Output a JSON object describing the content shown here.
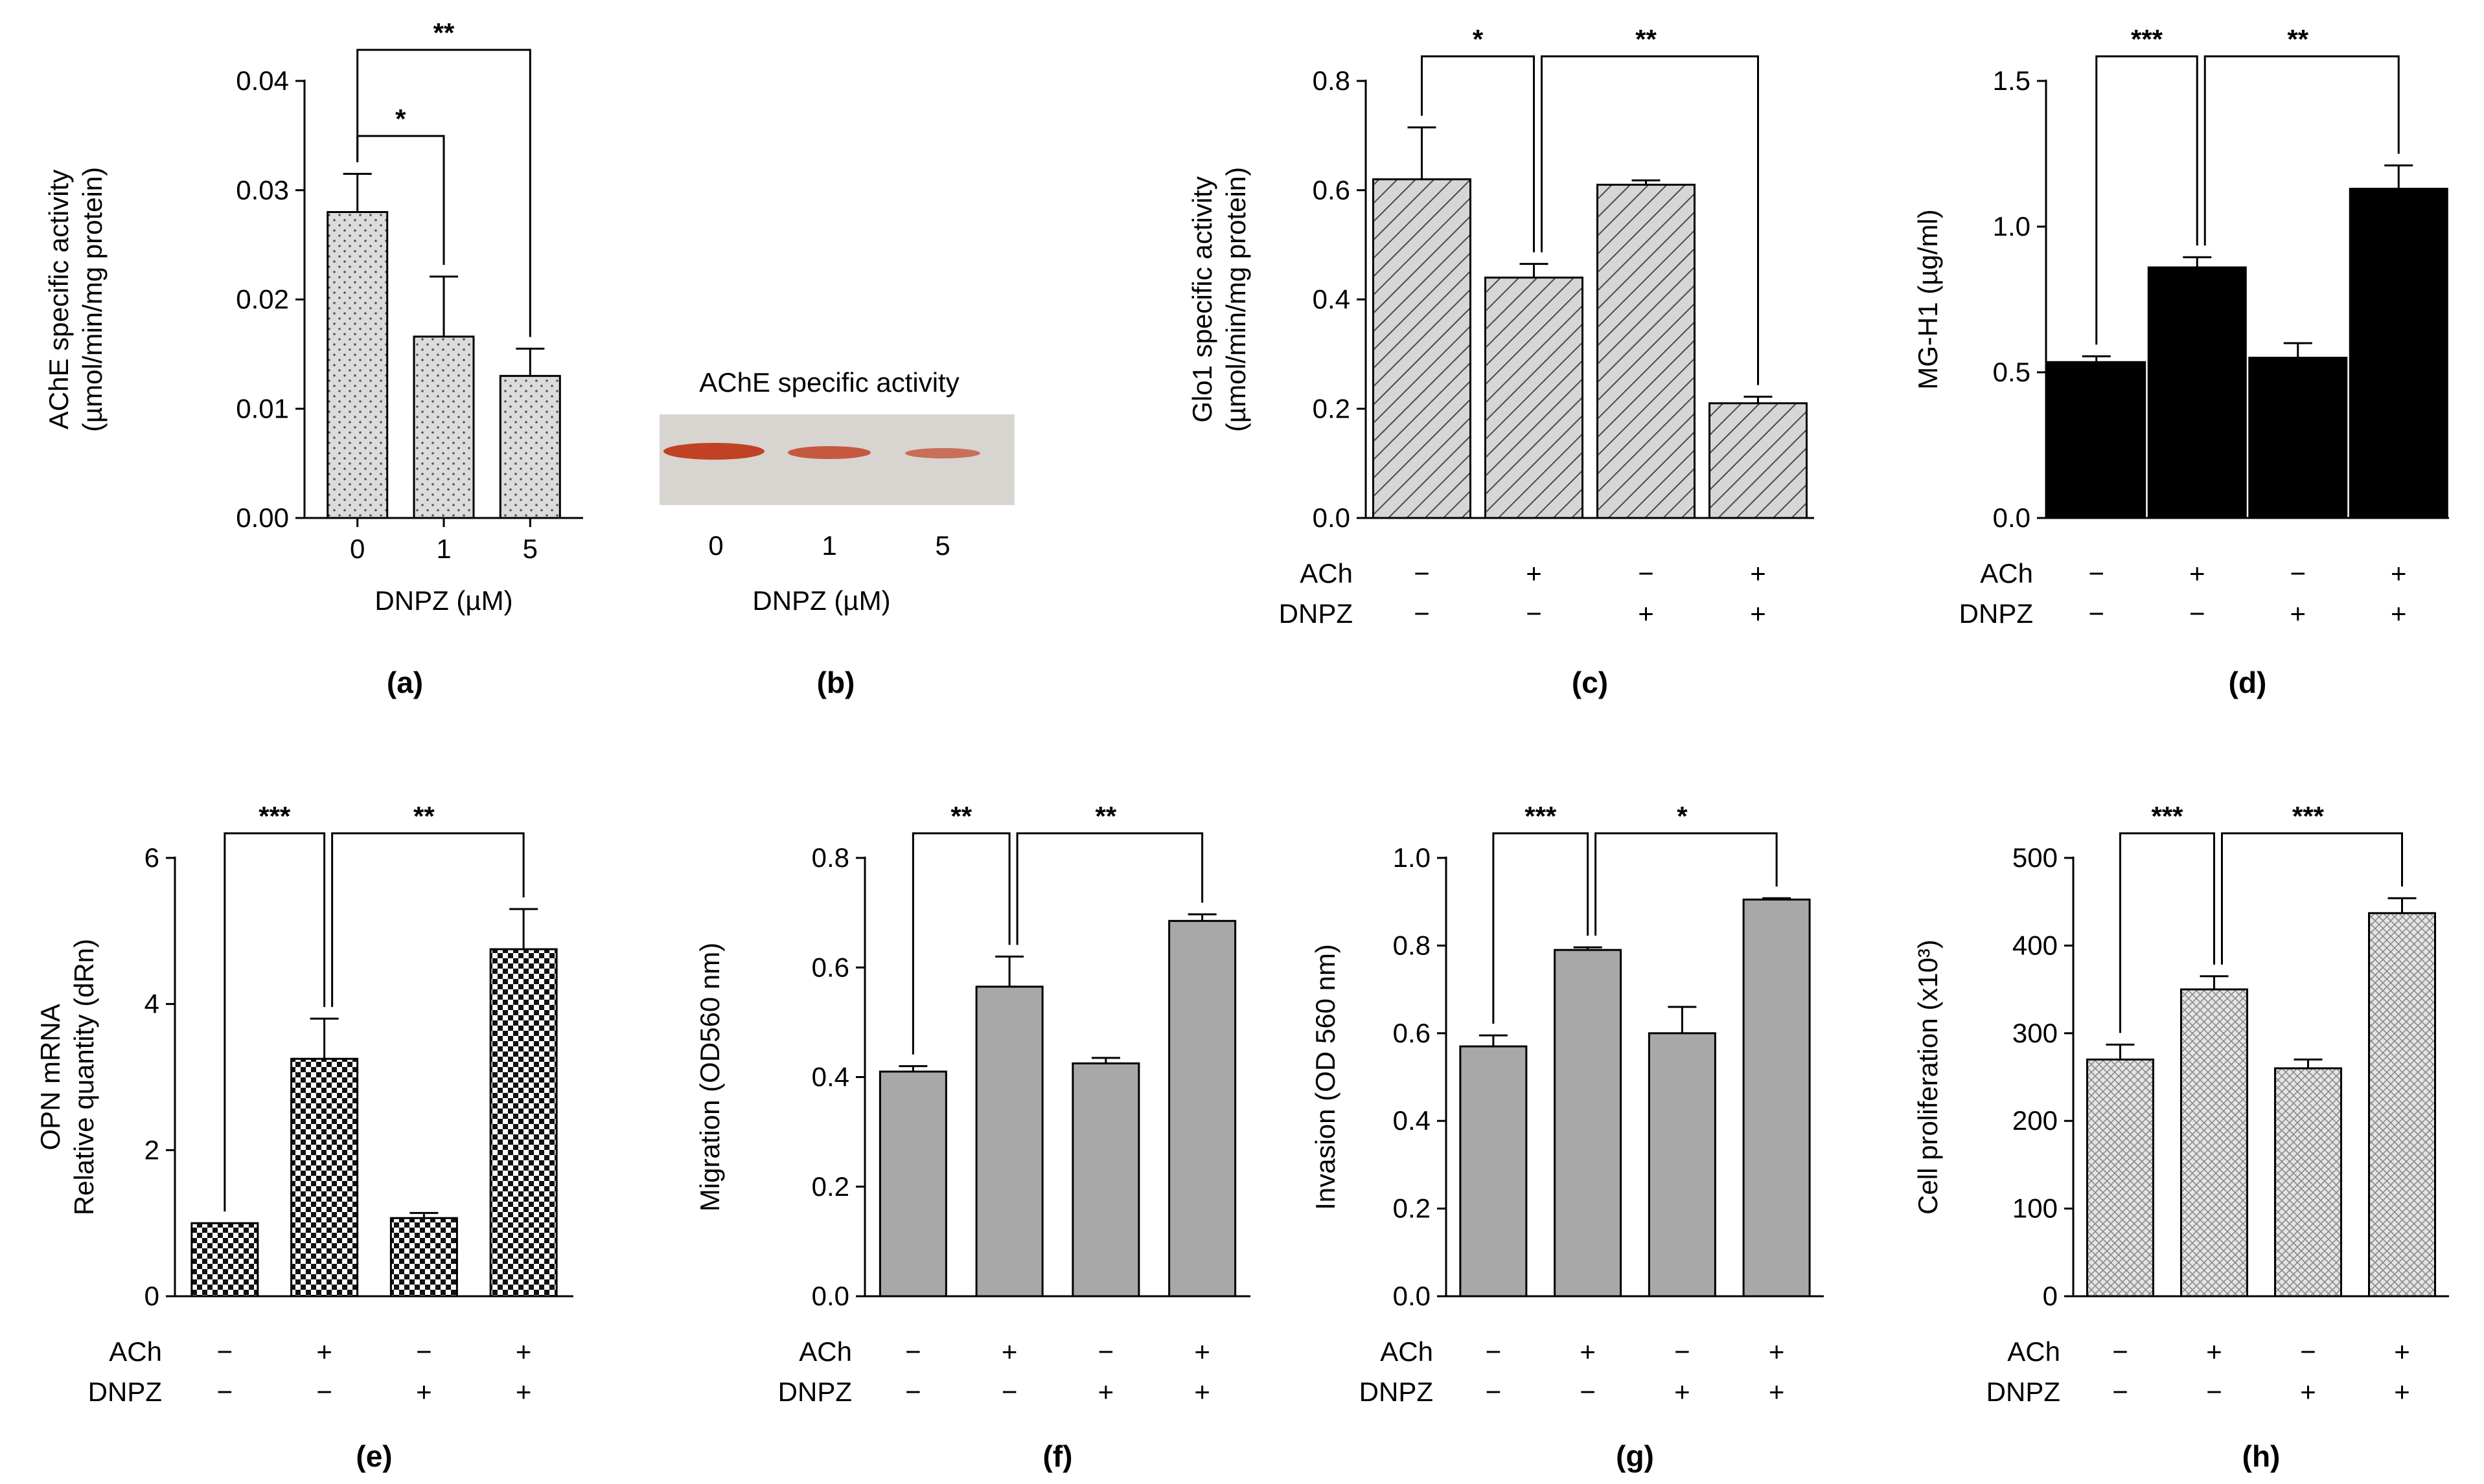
{
  "colors": {
    "panel_a_fill": "#dcdcdc",
    "panel_c_fill": "#d6d6d6",
    "panel_d_fill": "#000000",
    "panel_e_fill": "#1e1e1e",
    "panel_fg_fill": "#a8a8a8",
    "panel_h_fill": "#d4d4d4",
    "blot_bg": "#d8d4d0",
    "blot_band": "#c0391a"
  },
  "blot": {
    "title": "AChE specific activity",
    "lanes": [
      "0",
      "1",
      "5"
    ],
    "xlabel": "DNPZ (µM)",
    "panel_label": "(b)"
  },
  "chart_data": [
    {
      "id": "a",
      "type": "bar",
      "panel_label": "(a)",
      "pattern": "dots",
      "ylabel": [
        "AChE specific activity",
        "(µmol/min/mg protein)"
      ],
      "xlabel": "DNPZ (µM)",
      "categories": [
        "0",
        "1",
        "5"
      ],
      "values": [
        0.028,
        0.0166,
        0.013
      ],
      "errors": [
        0.0035,
        0.0055,
        0.0025
      ],
      "ylim": [
        0,
        0.04
      ],
      "yticks": [
        "0.00",
        "0.01",
        "0.02",
        "0.03",
        "0.04"
      ],
      "brackets": [
        {
          "from": 0,
          "to": 1,
          "label": "*"
        },
        {
          "from": 0,
          "to": 2,
          "label": "**"
        }
      ]
    },
    {
      "id": "c",
      "type": "bar",
      "panel_label": "(c)",
      "pattern": "diag",
      "ylabel": [
        "Glo1 specific activity",
        "(µmol/min/mg protein)"
      ],
      "values": [
        0.62,
        0.44,
        0.61,
        0.21
      ],
      "errors": [
        0.095,
        0.025,
        0.008,
        0.012
      ],
      "ylim": [
        0,
        0.8
      ],
      "yticks": [
        "0.0",
        "0.2",
        "0.4",
        "0.6",
        "0.8"
      ],
      "treatments": [
        {
          "name": "ACh",
          "signs": [
            "−",
            "+",
            "−",
            "+"
          ]
        },
        {
          "name": "DNPZ",
          "signs": [
            "−",
            "−",
            "+",
            "+"
          ]
        }
      ],
      "brackets": [
        {
          "from": 0,
          "to": 1,
          "label": "*"
        },
        {
          "from": 1,
          "to": 3,
          "label": "**"
        }
      ]
    },
    {
      "id": "d",
      "type": "bar",
      "panel_label": "(d)",
      "pattern": "solid",
      "ylabel": [
        "MG-H1 (µg/ml)"
      ],
      "values": [
        0.535,
        0.86,
        0.55,
        1.13
      ],
      "errors": [
        0.02,
        0.035,
        0.05,
        0.08
      ],
      "ylim": [
        0,
        1.5
      ],
      "yticks": [
        "0.0",
        "0.5",
        "1.0",
        "1.5"
      ],
      "treatments": [
        {
          "name": "ACh",
          "signs": [
            "−",
            "+",
            "−",
            "+"
          ]
        },
        {
          "name": "DNPZ",
          "signs": [
            "−",
            "−",
            "+",
            "+"
          ]
        }
      ],
      "brackets": [
        {
          "from": 0,
          "to": 1,
          "label": "***"
        },
        {
          "from": 1,
          "to": 3,
          "label": "**"
        }
      ]
    },
    {
      "id": "e",
      "type": "bar",
      "panel_label": "(e)",
      "pattern": "check",
      "ylabel": [
        "OPN mRNA",
        "Relative quantity (dRn)"
      ],
      "values": [
        1.0,
        3.25,
        1.07,
        4.75
      ],
      "errors": [
        0.0,
        0.55,
        0.07,
        0.55
      ],
      "ylim": [
        0,
        6
      ],
      "yticks": [
        "0",
        "2",
        "4",
        "6"
      ],
      "treatments": [
        {
          "name": "ACh",
          "signs": [
            "−",
            "+",
            "−",
            "+"
          ]
        },
        {
          "name": "DNPZ",
          "signs": [
            "−",
            "−",
            "+",
            "+"
          ]
        }
      ],
      "brackets": [
        {
          "from": 0,
          "to": 1,
          "label": "***"
        },
        {
          "from": 1,
          "to": 3,
          "label": "**"
        }
      ]
    },
    {
      "id": "f",
      "type": "bar",
      "panel_label": "(f)",
      "pattern": "gray",
      "ylabel": [
        "Migration (OD560 nm)"
      ],
      "values": [
        0.41,
        0.565,
        0.425,
        0.685
      ],
      "errors": [
        0.01,
        0.055,
        0.01,
        0.012
      ],
      "ylim": [
        0,
        0.8
      ],
      "yticks": [
        "0.0",
        "0.2",
        "0.4",
        "0.6",
        "0.8"
      ],
      "treatments": [
        {
          "name": "ACh",
          "signs": [
            "−",
            "+",
            "−",
            "+"
          ]
        },
        {
          "name": "DNPZ",
          "signs": [
            "−",
            "−",
            "+",
            "+"
          ]
        }
      ],
      "brackets": [
        {
          "from": 0,
          "to": 1,
          "label": "**"
        },
        {
          "from": 1,
          "to": 3,
          "label": "**"
        }
      ]
    },
    {
      "id": "g",
      "type": "bar",
      "panel_label": "(g)",
      "pattern": "gray",
      "ylabel": [
        "Invasion (OD 560 nm)"
      ],
      "values": [
        0.57,
        0.79,
        0.6,
        0.905
      ],
      "errors": [
        0.025,
        0.006,
        0.06,
        0.003
      ],
      "ylim": [
        0,
        1.0
      ],
      "yticks": [
        "0.0",
        "0.2",
        "0.4",
        "0.6",
        "0.8",
        "1.0"
      ],
      "treatments": [
        {
          "name": "ACh",
          "signs": [
            "−",
            "+",
            "−",
            "+"
          ]
        },
        {
          "name": "DNPZ",
          "signs": [
            "−",
            "−",
            "+",
            "+"
          ]
        }
      ],
      "brackets": [
        {
          "from": 0,
          "to": 1,
          "label": "***"
        },
        {
          "from": 1,
          "to": 3,
          "label": "*"
        }
      ]
    },
    {
      "id": "h",
      "type": "bar",
      "panel_label": "(h)",
      "pattern": "crosshatch",
      "ylabel": [
        "Cell proliferation (x10³)"
      ],
      "values": [
        270,
        350,
        260,
        437
      ],
      "errors": [
        17,
        15,
        10,
        17
      ],
      "ylim": [
        0,
        500
      ],
      "yticks": [
        "0",
        "100",
        "200",
        "300",
        "400",
        "500"
      ],
      "treatments": [
        {
          "name": "ACh",
          "signs": [
            "−",
            "+",
            "−",
            "+"
          ]
        },
        {
          "name": "DNPZ",
          "signs": [
            "−",
            "−",
            "+",
            "+"
          ]
        }
      ],
      "brackets": [
        {
          "from": 0,
          "to": 1,
          "label": "***"
        },
        {
          "from": 1,
          "to": 3,
          "label": "***"
        }
      ]
    }
  ]
}
